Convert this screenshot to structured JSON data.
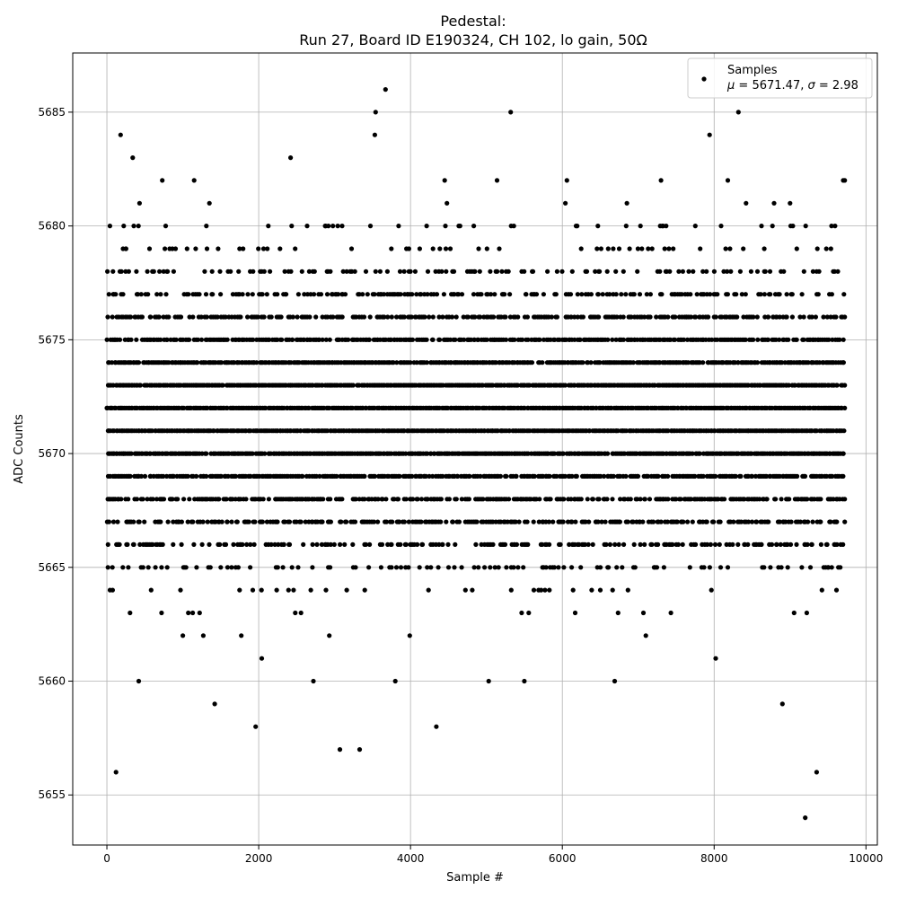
{
  "chart_data": {
    "type": "scatter",
    "title": "Pedestal:",
    "subtitle": "Run 27, Board ID E190324, CH 102, lo gain, 50Ω",
    "xlabel": "Sample #",
    "ylabel": "ADC Counts",
    "xlim": [
      -450,
      10150
    ],
    "ylim": [
      5652.8,
      5687.6
    ],
    "xticks": [
      0,
      2000,
      4000,
      6000,
      8000,
      10000
    ],
    "yticks": [
      5655,
      5660,
      5665,
      5670,
      5675,
      5680,
      5685
    ],
    "grid": true,
    "legend_position": "top-right",
    "legend": {
      "label": "Samples",
      "mu_label": "μ",
      "mu": "5671.47",
      "sigma_label": "σ",
      "sigma": "2.98"
    },
    "marker_color": "#000000",
    "n_samples": 9720,
    "points_note": "",
    "points": [
      [
        0,
        5672
      ],
      [
        40,
        5680
      ],
      [
        75,
        5664
      ],
      [
        80,
        5678
      ],
      [
        120,
        5656
      ],
      [
        145,
        5666
      ],
      [
        180,
        5684
      ],
      [
        210,
        5665
      ],
      [
        250,
        5679
      ],
      [
        340,
        5683
      ],
      [
        355,
        5680
      ],
      [
        420,
        5660
      ],
      [
        430,
        5681
      ],
      [
        450,
        5665
      ],
      [
        510,
        5666
      ],
      [
        720,
        5663
      ],
      [
        730,
        5682
      ],
      [
        1000,
        5662
      ],
      [
        1150,
        5682
      ],
      [
        1170,
        5679
      ],
      [
        1270,
        5662
      ],
      [
        1310,
        5680
      ],
      [
        1350,
        5681
      ],
      [
        1420,
        5659
      ],
      [
        1770,
        5662
      ],
      [
        1960,
        5658
      ],
      [
        2040,
        5661
      ],
      [
        2420,
        5683
      ],
      [
        2720,
        5660
      ],
      [
        2930,
        5662
      ],
      [
        3070,
        5657
      ],
      [
        3330,
        5657
      ],
      [
        3540,
        5685
      ],
      [
        3530,
        5684
      ],
      [
        3670,
        5686
      ],
      [
        3800,
        5660
      ],
      [
        3990,
        5662
      ],
      [
        4340,
        5658
      ],
      [
        4450,
        5682
      ],
      [
        4480,
        5681
      ],
      [
        5030,
        5660
      ],
      [
        5140,
        5682
      ],
      [
        5320,
        5685
      ],
      [
        5500,
        5660
      ],
      [
        6040,
        5681
      ],
      [
        6060,
        5682
      ],
      [
        6690,
        5660
      ],
      [
        6850,
        5681
      ],
      [
        7100,
        5662
      ],
      [
        7300,
        5682
      ],
      [
        7430,
        5663
      ],
      [
        7940,
        5684
      ],
      [
        8020,
        5661
      ],
      [
        8180,
        5682
      ],
      [
        8320,
        5685
      ],
      [
        8420,
        5681
      ],
      [
        8790,
        5681
      ],
      [
        8900,
        5659
      ],
      [
        9000,
        5681
      ],
      [
        9200,
        5654
      ],
      [
        9220,
        5663
      ],
      [
        9350,
        5656
      ],
      [
        9700,
        5682
      ],
      [
        9720,
        5682
      ]
    ],
    "band_note": "",
    "bands": [
      {
        "y": 5666,
        "density": 0.42
      },
      {
        "y": 5667,
        "density": 0.55
      },
      {
        "y": 5668,
        "density": 0.7
      },
      {
        "y": 5669,
        "density": 0.85
      },
      {
        "y": 5670,
        "density": 0.95
      },
      {
        "y": 5671,
        "density": 1.0
      },
      {
        "y": 5672,
        "density": 1.0
      },
      {
        "y": 5673,
        "density": 0.98
      },
      {
        "y": 5674,
        "density": 0.92
      },
      {
        "y": 5675,
        "density": 0.8
      },
      {
        "y": 5676,
        "density": 0.6
      },
      {
        "y": 5677,
        "density": 0.42
      },
      {
        "y": 5678,
        "density": 0.25
      },
      {
        "y": 5679,
        "density": 0.1
      },
      {
        "y": 5680,
        "density": 0.06
      },
      {
        "y": 5665,
        "density": 0.22
      },
      {
        "y": 5664,
        "density": 0.07
      },
      {
        "y": 5663,
        "density": 0.03
      }
    ]
  }
}
